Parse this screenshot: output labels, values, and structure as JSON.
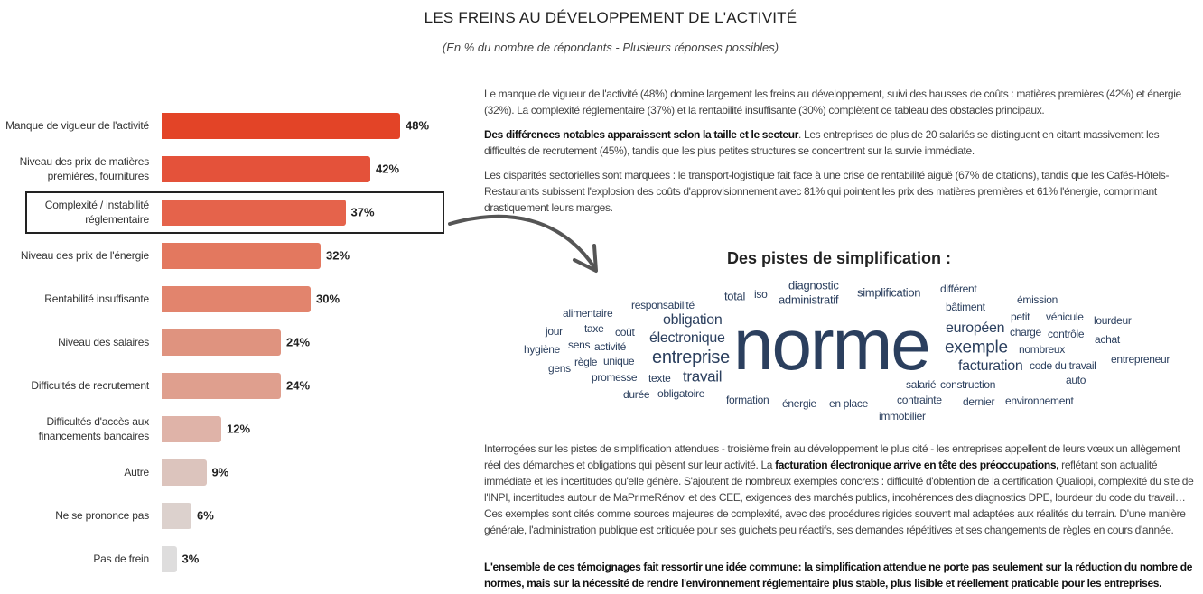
{
  "header": {
    "title": "LES FREINS AU DÉVELOPPEMENT DE L'ACTIVITÉ",
    "subtitle": "(En % du nombre de répondants - Plusieurs réponses possibles)"
  },
  "chart_data": {
    "type": "bar",
    "orientation": "horizontal",
    "title": "LES FREINS AU DÉVELOPPEMENT DE L'ACTIVITÉ",
    "subtitle": "(En % du nombre de répondants - Plusieurs réponses possibles)",
    "categories": [
      "Manque de vigueur de l'activité",
      "Niveau des prix de matières premières, fournitures",
      "Complexité / instabilité réglementaire",
      "Niveau des prix de l'énergie",
      "Rentabilité insuffisante",
      "Niveau des salaires",
      "Difficultés de recrutement",
      "Difficultés d'accès aux financements bancaires",
      "Autre",
      "Ne se prononce pas",
      "Pas de frein"
    ],
    "values": [
      48,
      42,
      37,
      32,
      30,
      24,
      24,
      12,
      9,
      6,
      3
    ],
    "labels": [
      "48%",
      "42%",
      "37%",
      "32%",
      "30%",
      "24%",
      "24%",
      "12%",
      "9%",
      "6%",
      "3%"
    ],
    "colors": [
      "#e34427",
      "#e4523a",
      "#e5634b",
      "#e3785f",
      "#e2846d",
      "#df937f",
      "#df9f8e",
      "#dfb3a8",
      "#dcc4bd",
      "#dcd1cd",
      "#dedddd"
    ],
    "highlighted": "Complexité / instabilité réglementaire",
    "unit": "%",
    "grid": false,
    "legend": "none"
  },
  "text": {
    "p1": "Le manque de vigueur de l'activité (48%) domine largement les freins au développement, suivi des hausses de coûts : matières premières (42%) et énergie (32%). La complexité réglementaire (37%) et la rentabilité insuffisante (30%) complètent ce tableau des obstacles principaux.",
    "p2_bold": "Des différences notables apparaissent selon la taille et le secteur",
    "p2_rest": ". Les entreprises de plus de 20 salariés se distinguent en citant massivement les difficultés de recrutement (45%), tandis que les plus petites structures se concentrent sur la survie immédiate.",
    "p3": "Les disparités sectorielles sont marquées : le transport-logistique fait face à une crise de rentabilité aiguë (67% de citations), tandis que les Cafés-Hôtels-Restaurants subissent l'explosion des coûts d'approvisionnement avec 81% qui pointent les prix des matières premières et 61% l'énergie, comprimant drastiquement leurs marges.",
    "p4_a": "Interrogées sur les pistes de simplification attendues - troisième frein au développement le plus cité - les entreprises appellent de leurs vœux un allègement réel des démarches et obligations qui pèsent sur leur activité. La ",
    "p4_bold": "facturation électronique arrive en tête des préoccupations,",
    "p4_b": " reflétant son actualité immédiate et les incertitudes qu'elle génère. S'ajoutent de nombreux exemples concrets : difficulté d'obtention de la certification Qualiopi, complexité du site de l'INPI, incertitudes autour de MaPrimeRénov' et des CEE, exigences des marchés publics, incohérences des diagnostics DPE, lourdeur du code du travail… Ces exemples sont cités comme sources majeures de complexité, avec des procédures rigides souvent mal adaptées aux réalités du terrain. D'une manière générale, l'administration publique est critiquée pour ses guichets peu réactifs, ses demandes répétitives et ses changements de règles en cours d'année.",
    "p5": "L'ensemble de ces témoignages fait ressortir une idée commune: la simplification attendue ne porte pas seulement sur la réduction du nombre de normes, mais sur la nécessité de rendre l'environnement réglementaire plus stable, plus lisible et réellement praticable pour les entreprises."
  },
  "wordcloud": {
    "title": "Des pistes de simplification :",
    "color": "#2b3f5e",
    "words": [
      {
        "w": "norme",
        "weight": 80
      },
      {
        "w": "entreprise",
        "weight": 20
      },
      {
        "w": "exemple",
        "weight": 19
      },
      {
        "w": "obligation",
        "weight": 16
      },
      {
        "w": "électronique",
        "weight": 16
      },
      {
        "w": "européen",
        "weight": 16
      },
      {
        "w": "travail",
        "weight": 17
      },
      {
        "w": "facturation",
        "weight": 16
      },
      {
        "w": "diagnostic",
        "weight": 13
      },
      {
        "w": "administratif",
        "weight": 13
      },
      {
        "w": "total",
        "weight": 13
      },
      {
        "w": "iso",
        "weight": 12
      },
      {
        "w": "simplification",
        "weight": 13
      },
      {
        "w": "différent",
        "weight": 12
      },
      {
        "w": "émission",
        "weight": 12
      },
      {
        "w": "bâtiment",
        "weight": 12
      },
      {
        "w": "responsabilité",
        "weight": 12
      },
      {
        "w": "alimentaire",
        "weight": 12
      },
      {
        "w": "petit",
        "weight": 12
      },
      {
        "w": "véhicule",
        "weight": 12
      },
      {
        "w": "lourdeur",
        "weight": 12
      },
      {
        "w": "jour",
        "weight": 12
      },
      {
        "w": "taxe",
        "weight": 12
      },
      {
        "w": "coût",
        "weight": 12
      },
      {
        "w": "charge",
        "weight": 12
      },
      {
        "w": "contrôle",
        "weight": 12
      },
      {
        "w": "achat",
        "weight": 12
      },
      {
        "w": "hygiène",
        "weight": 12
      },
      {
        "w": "sens",
        "weight": 12
      },
      {
        "w": "activité",
        "weight": 12
      },
      {
        "w": "nombreux",
        "weight": 12
      },
      {
        "w": "gens",
        "weight": 12
      },
      {
        "w": "règle",
        "weight": 12
      },
      {
        "w": "unique",
        "weight": 12
      },
      {
        "w": "code du travail",
        "weight": 12
      },
      {
        "w": "entrepreneur",
        "weight": 12
      },
      {
        "w": "promesse",
        "weight": 12
      },
      {
        "w": "texte",
        "weight": 12
      },
      {
        "w": "salarié",
        "weight": 12
      },
      {
        "w": "construction",
        "weight": 12
      },
      {
        "w": "auto",
        "weight": 12
      },
      {
        "w": "durée",
        "weight": 12
      },
      {
        "w": "obligatoire",
        "weight": 12
      },
      {
        "w": "formation",
        "weight": 12
      },
      {
        "w": "énergie",
        "weight": 12
      },
      {
        "w": "en place",
        "weight": 12
      },
      {
        "w": "contrainte",
        "weight": 12
      },
      {
        "w": "dernier",
        "weight": 12
      },
      {
        "w": "environnement",
        "weight": 12
      },
      {
        "w": "immobilier",
        "weight": 12
      }
    ]
  }
}
